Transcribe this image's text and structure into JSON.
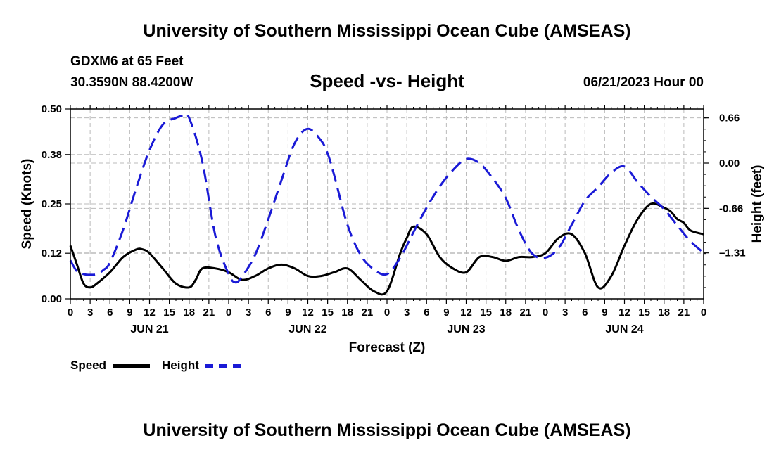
{
  "header": {
    "main_title": "University of Southern Mississippi Ocean Cube (AMSEAS)",
    "station": "GDXM6 at 65 Feet",
    "coords": "30.3590N  88.4200W",
    "date": "06/21/2023 Hour 00"
  },
  "footer": {
    "title": "University of Southern Mississippi Ocean Cube (AMSEAS)"
  },
  "colors": {
    "speed": "#000000",
    "height": "#1a1ad6",
    "grid": "#bbbbbb"
  },
  "chart_data": {
    "type": "line",
    "title": "Speed -vs- Height",
    "xlabel": "Forecast (Z)",
    "ylabel_left": "Speed (Knots)",
    "ylabel_right": "Height (feet)",
    "x_range_hours": [
      0,
      96
    ],
    "x_ticks_hours": [
      0,
      3,
      6,
      9,
      12,
      15,
      18,
      21,
      24,
      27,
      30,
      33,
      36,
      39,
      42,
      45,
      48,
      51,
      54,
      57,
      60,
      63,
      66,
      69,
      72,
      75,
      78,
      81,
      84,
      87,
      90,
      93,
      96
    ],
    "x_tick_labels": [
      "0",
      "3",
      "6",
      "9",
      "12",
      "15",
      "18",
      "21",
      "0",
      "3",
      "6",
      "9",
      "12",
      "15",
      "18",
      "21",
      "0",
      "3",
      "6",
      "9",
      "12",
      "15",
      "18",
      "21",
      "0",
      "3",
      "6",
      "9",
      "12",
      "15",
      "18",
      "21",
      "0"
    ],
    "day_labels": [
      {
        "hour": 12,
        "label": "JUN 21"
      },
      {
        "hour": 36,
        "label": "JUN 22"
      },
      {
        "hour": 60,
        "label": "JUN 23"
      },
      {
        "hour": 84,
        "label": "JUN 24"
      }
    ],
    "left_axis": {
      "ylim": [
        0,
        0.5
      ],
      "ticks": [
        0.0,
        0.12,
        0.25,
        0.38,
        0.5
      ],
      "tick_labels": [
        "0.00",
        "0.12",
        "0.25",
        "0.38",
        "0.50"
      ]
    },
    "right_axis": {
      "ylim": [
        -1.98,
        0.79
      ],
      "ticks": [
        0.66,
        0.0,
        -0.66,
        -1.31
      ],
      "tick_labels": [
        "0.66",
        "0.00",
        "-0.66",
        "–1.31"
      ]
    },
    "series": [
      {
        "name": "Speed",
        "axis": "left",
        "style": "solid",
        "x": [
          0,
          1,
          2,
          3,
          4,
          6,
          8,
          10,
          11,
          12,
          14,
          16,
          18,
          19,
          20,
          22,
          24,
          26,
          28,
          30,
          32,
          34,
          36,
          38,
          40,
          42,
          44,
          46,
          48,
          50,
          51,
          52,
          54,
          56,
          58,
          60,
          62,
          64,
          66,
          68,
          70,
          72,
          74,
          76,
          78,
          80,
          82,
          84,
          86,
          88,
          90,
          91,
          92,
          93,
          94,
          96
        ],
        "values": [
          0.14,
          0.09,
          0.04,
          0.03,
          0.04,
          0.07,
          0.11,
          0.13,
          0.13,
          0.12,
          0.08,
          0.04,
          0.03,
          0.05,
          0.08,
          0.08,
          0.07,
          0.05,
          0.06,
          0.08,
          0.09,
          0.08,
          0.06,
          0.06,
          0.07,
          0.08,
          0.05,
          0.02,
          0.02,
          0.12,
          0.16,
          0.19,
          0.17,
          0.11,
          0.08,
          0.07,
          0.11,
          0.11,
          0.1,
          0.11,
          0.11,
          0.12,
          0.16,
          0.17,
          0.12,
          0.03,
          0.06,
          0.14,
          0.21,
          0.25,
          0.24,
          0.23,
          0.21,
          0.2,
          0.18,
          0.17
        ]
      },
      {
        "name": "Height",
        "axis": "right",
        "style": "dashed",
        "x": [
          0,
          1,
          2,
          3,
          4,
          5,
          6,
          8,
          10,
          12,
          14,
          16,
          17,
          18,
          20,
          22,
          24,
          25,
          26,
          28,
          30,
          32,
          34,
          36,
          38,
          39,
          40,
          42,
          44,
          46,
          48,
          50,
          52,
          54,
          56,
          58,
          60,
          62,
          64,
          66,
          68,
          70,
          72,
          74,
          76,
          78,
          80,
          82,
          84,
          86,
          88,
          90,
          92,
          94,
          96
        ],
        "values": [
          -1.42,
          -1.58,
          -1.62,
          -1.63,
          -1.62,
          -1.56,
          -1.45,
          -0.97,
          -0.36,
          0.19,
          0.56,
          0.66,
          0.69,
          0.66,
          0.02,
          -1.07,
          -1.62,
          -1.74,
          -1.66,
          -1.34,
          -0.82,
          -0.25,
          0.29,
          0.5,
          0.33,
          0.14,
          -0.18,
          -0.9,
          -1.34,
          -1.55,
          -1.62,
          -1.38,
          -1.01,
          -0.65,
          -0.34,
          -0.1,
          0.06,
          0.0,
          -0.22,
          -0.51,
          -0.98,
          -1.32,
          -1.38,
          -1.24,
          -0.9,
          -0.55,
          -0.35,
          -0.14,
          -0.05,
          -0.28,
          -0.49,
          -0.67,
          -0.91,
          -1.14,
          -1.31
        ]
      }
    ],
    "legend": [
      {
        "label": "Speed",
        "style": "solid"
      },
      {
        "label": "Height",
        "style": "dashed"
      }
    ],
    "grid": true
  }
}
